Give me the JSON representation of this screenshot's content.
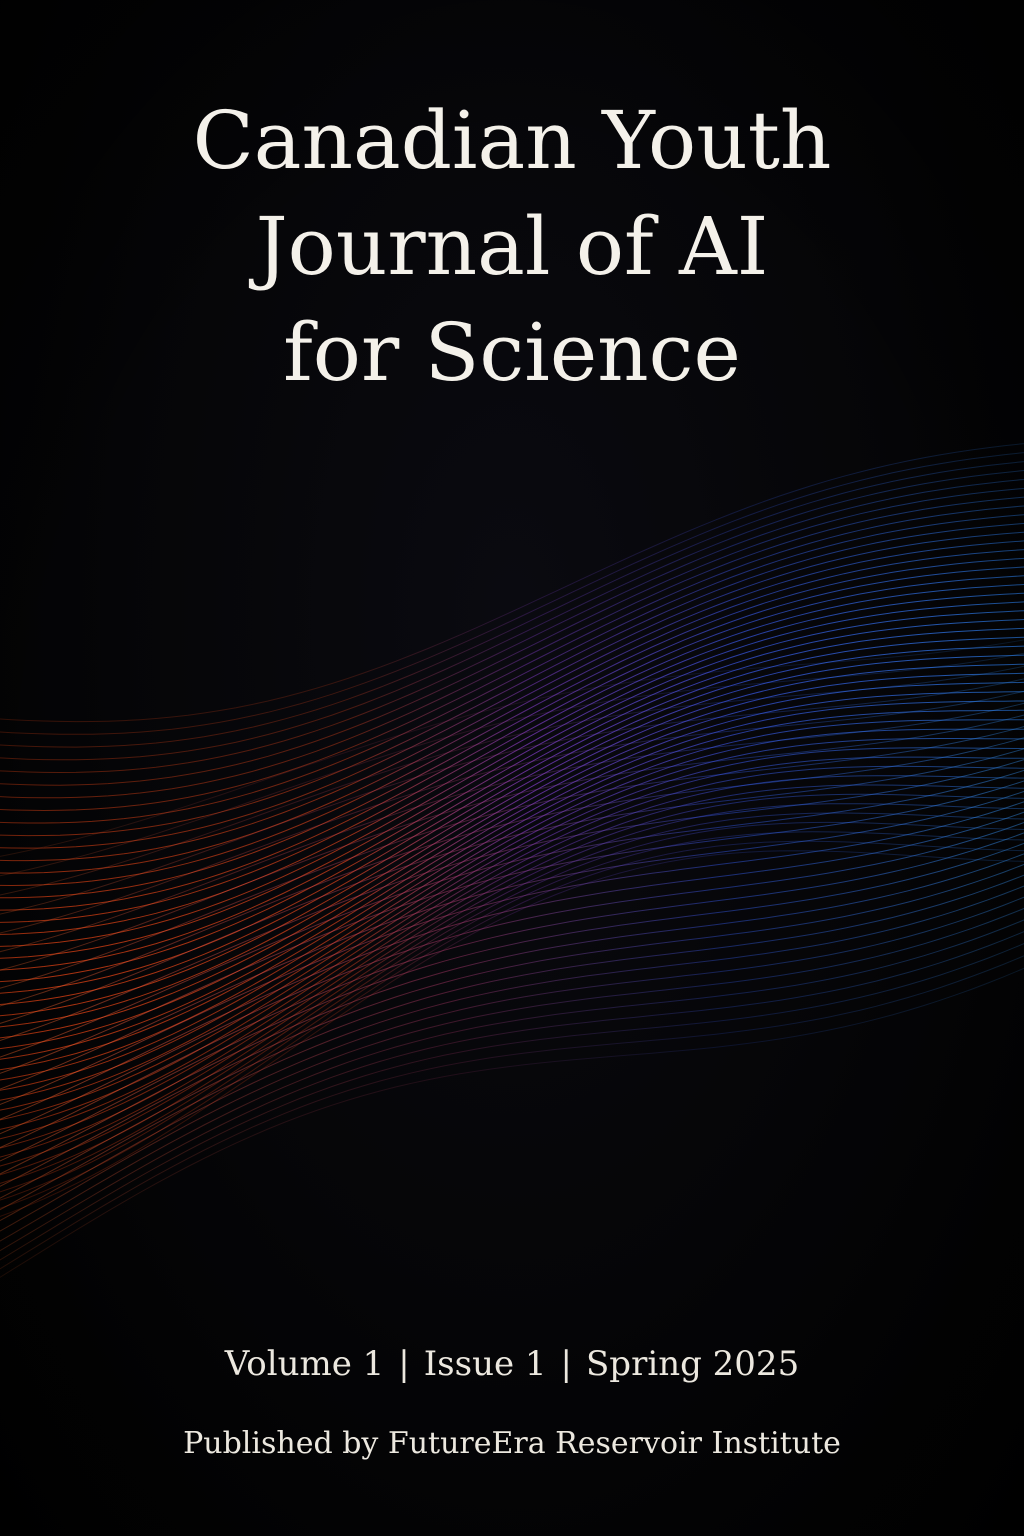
{
  "cover": {
    "title_lines": [
      "Canadian Youth",
      "Journal of AI",
      "for Science"
    ],
    "volume": "Volume 1",
    "separator": "|",
    "issue": "Issue 1",
    "season": "Spring 2025",
    "publisher": "Published by FutureEra Reservoir Institute",
    "artwork": "flowing-wave-lines-illustration"
  },
  "colors": {
    "background": "#000000",
    "text": "#f4f1ea",
    "wave_warm": "#ff5a1f",
    "wave_mid": "#8a3fd1",
    "wave_cool": "#2f7bff"
  }
}
